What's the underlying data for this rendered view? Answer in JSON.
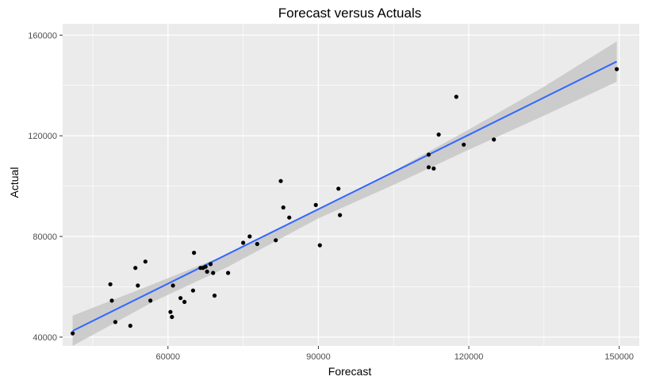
{
  "chart_data": {
    "type": "scatter",
    "title": "Forecast versus Actuals",
    "xlabel": "Forecast",
    "ylabel": "Actual",
    "xlim": [
      39000,
      154000
    ],
    "ylim": [
      36500,
      164500
    ],
    "x_ticks": [
      60000,
      90000,
      120000,
      150000
    ],
    "x_tick_labels": [
      "60000",
      "90000",
      "120000",
      "150000"
    ],
    "y_ticks": [
      40000,
      80000,
      120000,
      160000
    ],
    "y_tick_labels": [
      "40000",
      "80000",
      "120000",
      "160000"
    ],
    "grid": true,
    "legend": "none",
    "colors": {
      "panel": "#ebebeb",
      "grid": "#ffffff",
      "points": "#000000",
      "trend_line": "#3366ff",
      "confidence_band": "#c7c7c7"
    },
    "points": [
      [
        41000,
        41500
      ],
      [
        48500,
        61000
      ],
      [
        48800,
        54500
      ],
      [
        49500,
        46000
      ],
      [
        52500,
        44500
      ],
      [
        53500,
        67500
      ],
      [
        54000,
        60500
      ],
      [
        55500,
        70000
      ],
      [
        56500,
        54500
      ],
      [
        60500,
        50000
      ],
      [
        60800,
        48000
      ],
      [
        61000,
        60500
      ],
      [
        62500,
        55500
      ],
      [
        63300,
        54000
      ],
      [
        65000,
        58500
      ],
      [
        65200,
        73500
      ],
      [
        66500,
        67500
      ],
      [
        67000,
        67500
      ],
      [
        67500,
        68000
      ],
      [
        67800,
        66000
      ],
      [
        68500,
        69000
      ],
      [
        69000,
        65500
      ],
      [
        69300,
        56500
      ],
      [
        72000,
        65500
      ],
      [
        75000,
        77500
      ],
      [
        76300,
        80000
      ],
      [
        77800,
        77000
      ],
      [
        81500,
        78500
      ],
      [
        82500,
        102000
      ],
      [
        83000,
        91500
      ],
      [
        84200,
        87500
      ],
      [
        89500,
        92500
      ],
      [
        90300,
        76500
      ],
      [
        94000,
        99000
      ],
      [
        94300,
        88500
      ],
      [
        112000,
        112500
      ],
      [
        112000,
        107500
      ],
      [
        113000,
        107000
      ],
      [
        114000,
        120500
      ],
      [
        117500,
        135500
      ],
      [
        119000,
        116500
      ],
      [
        125000,
        118500
      ],
      [
        149500,
        146500
      ]
    ],
    "trend_line": {
      "method": "linear",
      "x": [
        41000,
        149500
      ],
      "y": [
        42500,
        149500
      ]
    },
    "confidence_band": {
      "x": [
        41000,
        57000,
        72000,
        90000,
        105000,
        120000,
        135000,
        149500
      ],
      "upper": [
        48500,
        61000,
        73000,
        90800,
        106000,
        122500,
        139500,
        157500
      ],
      "lower": [
        36500,
        54000,
        68000,
        87200,
        100500,
        114500,
        128000,
        141500
      ]
    }
  }
}
